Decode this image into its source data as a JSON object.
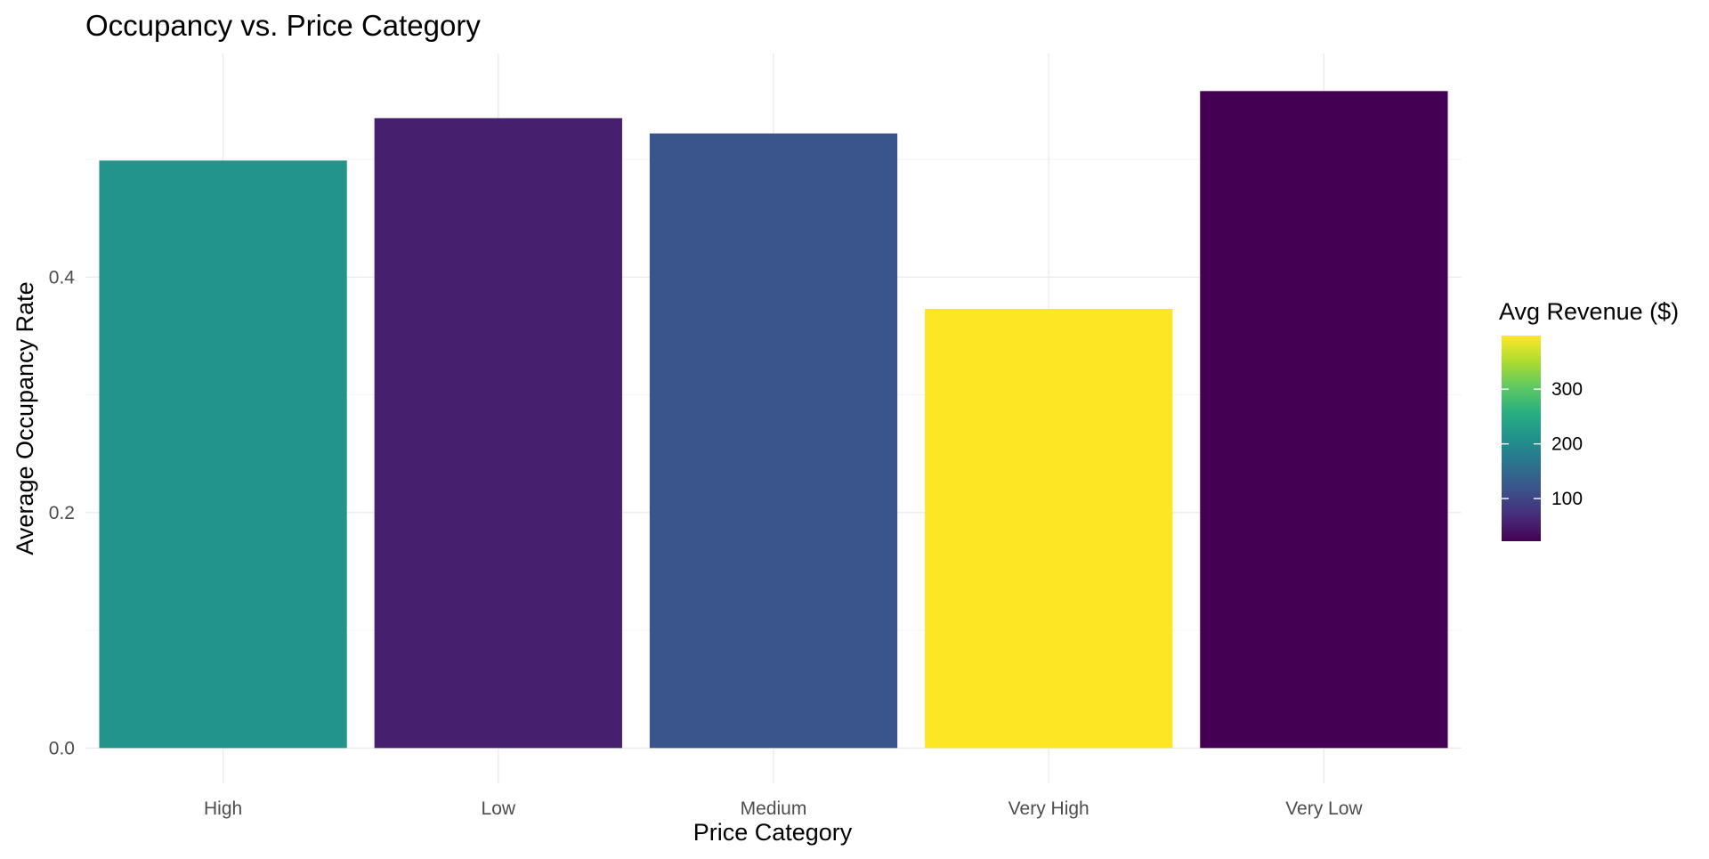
{
  "chart_data": {
    "type": "bar",
    "title": "Occupancy vs. Price Category",
    "xlabel": "Price Category",
    "ylabel": "Average Occupancy Rate",
    "categories": [
      "High",
      "Low",
      "Medium",
      "Very High",
      "Very Low"
    ],
    "values": [
      0.499,
      0.535,
      0.522,
      0.373,
      0.558
    ],
    "fill_values": [
      215,
      55,
      120,
      398,
      22
    ],
    "ylim": [
      -0.03,
      0.59
    ],
    "y_ticks": [
      0.0,
      0.2,
      0.4
    ],
    "y_tick_labels": [
      "0.0",
      "0.2",
      "0.4"
    ],
    "grid": true,
    "legend": {
      "title": "Avg Revenue ($)",
      "position": "right",
      "scale": "viridis",
      "range": [
        22,
        398
      ],
      "ticks": [
        100,
        200,
        300
      ],
      "tick_labels": [
        "100",
        "200",
        "300"
      ]
    }
  }
}
